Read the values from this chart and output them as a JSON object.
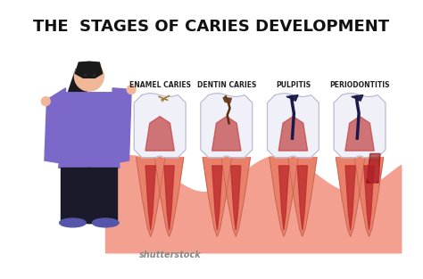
{
  "title": "THE  STAGES OF CARIES DEVELOPMENT",
  "title_fontsize": 13,
  "title_fontweight": "bold",
  "bg_color": "#ffffff",
  "stages": [
    "ENAMEL CARIES",
    "DENTIN CARIES",
    "PULPITIS",
    "PERIODONTITIS"
  ],
  "stage_label_fontsize": 5.5,
  "gum_color": "#F4A090",
  "gum_dark": "#E8806A",
  "tooth_white": "#F0F0F8",
  "tooth_outline": "#D8D8E8",
  "root_color": "#E8806A",
  "decay_colors": [
    "#C8A050",
    "#8B6040",
    "#1a1a4a",
    "#1a1a4a"
  ],
  "pulp_color": "#C04040",
  "nerve_color": "#C03030",
  "person_body_color": "#7B68C8",
  "person_skin_color": "#F0B898",
  "person_hair_color": "#1a1a1a",
  "person_pants_color": "#1a1a2a",
  "shutterstock_color": "#888888",
  "shutterstock_text": "shutterstock",
  "watermark_color": "#cccccc"
}
